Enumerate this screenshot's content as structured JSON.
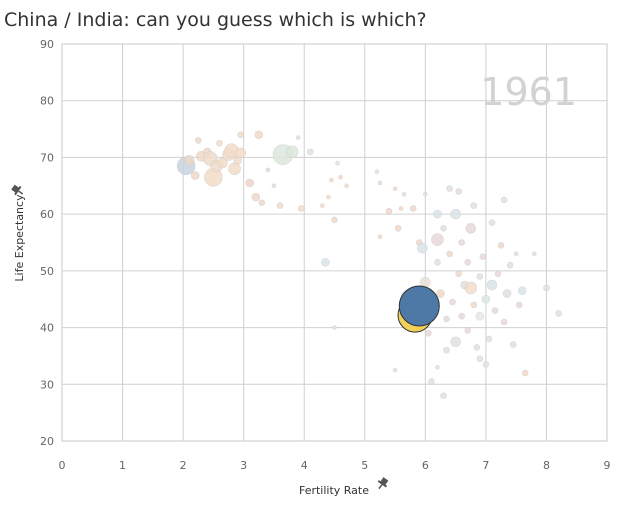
{
  "title": "China / India: can you guess which is which?",
  "chart_data": {
    "type": "scatter",
    "title": "China / India: can you guess which is which?",
    "xlabel": "Fertility Rate",
    "ylabel": "Life Expectancy",
    "xlim": [
      0,
      9
    ],
    "ylim": [
      20,
      90
    ],
    "xticks": [
      "0",
      "1",
      "2",
      "3",
      "4",
      "5",
      "6",
      "7",
      "8",
      "9"
    ],
    "yticks": [
      "20",
      "30",
      "40",
      "50",
      "60",
      "70",
      "80",
      "90"
    ],
    "grid": true,
    "year_label": "1961",
    "highlighted": [
      {
        "x": 5.83,
        "y": 42.2,
        "size": 17,
        "color": "#f0d25a"
      },
      {
        "x": 5.9,
        "y": 43.8,
        "size": 20,
        "color": "#4e79a7"
      }
    ],
    "background_points": [
      {
        "x": 2.05,
        "y": 68.5,
        "size": 9,
        "color": "#c8d4e0"
      },
      {
        "x": 2.1,
        "y": 69.5,
        "size": 5,
        "color": "#ead8c8"
      },
      {
        "x": 2.2,
        "y": 66.8,
        "size": 4,
        "color": "#f0d8c8"
      },
      {
        "x": 2.25,
        "y": 73.0,
        "size": 3,
        "color": "#f0d8c8"
      },
      {
        "x": 2.3,
        "y": 70.2,
        "size": 5,
        "color": "#f0d8c8"
      },
      {
        "x": 2.4,
        "y": 71.0,
        "size": 4,
        "color": "#f0d8c8"
      },
      {
        "x": 2.45,
        "y": 69.8,
        "size": 7,
        "color": "#f0dcc8"
      },
      {
        "x": 2.5,
        "y": 66.5,
        "size": 9,
        "color": "#f3dcc8"
      },
      {
        "x": 2.55,
        "y": 68.5,
        "size": 6,
        "color": "#f0dcc8"
      },
      {
        "x": 2.6,
        "y": 72.5,
        "size": 3,
        "color": "#f0dcc8"
      },
      {
        "x": 2.65,
        "y": 69.0,
        "size": 5,
        "color": "#f0dcc8"
      },
      {
        "x": 2.75,
        "y": 70.5,
        "size": 6,
        "color": "#f0dcc8"
      },
      {
        "x": 2.8,
        "y": 71.2,
        "size": 7,
        "color": "#f3dcc8"
      },
      {
        "x": 2.85,
        "y": 68.0,
        "size": 6,
        "color": "#f3dcc8"
      },
      {
        "x": 2.9,
        "y": 69.5,
        "size": 4,
        "color": "#f0dcc8"
      },
      {
        "x": 2.95,
        "y": 70.8,
        "size": 5,
        "color": "#f3dcc8"
      },
      {
        "x": 2.95,
        "y": 74.0,
        "size": 3,
        "color": "#f0dcc8"
      },
      {
        "x": 3.1,
        "y": 65.5,
        "size": 4,
        "color": "#f0d4c8"
      },
      {
        "x": 3.2,
        "y": 63.0,
        "size": 4,
        "color": "#f0d8c8"
      },
      {
        "x": 3.25,
        "y": 74.0,
        "size": 4,
        "color": "#f0d8c8"
      },
      {
        "x": 3.3,
        "y": 62.0,
        "size": 3,
        "color": "#f0d8c8"
      },
      {
        "x": 3.4,
        "y": 67.8,
        "size": 2,
        "color": "#e8d8d8"
      },
      {
        "x": 3.5,
        "y": 65.0,
        "size": 2,
        "color": "#e8d8d8"
      },
      {
        "x": 3.6,
        "y": 61.5,
        "size": 3,
        "color": "#f0dcc8"
      },
      {
        "x": 3.65,
        "y": 70.5,
        "size": 10,
        "color": "#dce8dc"
      },
      {
        "x": 3.8,
        "y": 71.0,
        "size": 6,
        "color": "#dce8dc"
      },
      {
        "x": 3.9,
        "y": 73.5,
        "size": 2,
        "color": "#e0e0e0"
      },
      {
        "x": 3.95,
        "y": 61.0,
        "size": 3,
        "color": "#f0dcc8"
      },
      {
        "x": 4.1,
        "y": 71.0,
        "size": 3,
        "color": "#e8e0d8"
      },
      {
        "x": 4.3,
        "y": 61.5,
        "size": 2,
        "color": "#f0d8c8"
      },
      {
        "x": 4.35,
        "y": 51.5,
        "size": 4,
        "color": "#d8e4e8"
      },
      {
        "x": 4.4,
        "y": 63.0,
        "size": 2,
        "color": "#f0d8c8"
      },
      {
        "x": 4.45,
        "y": 66.0,
        "size": 2,
        "color": "#f0d8c8"
      },
      {
        "x": 4.5,
        "y": 59.0,
        "size": 3,
        "color": "#f0d8c8"
      },
      {
        "x": 4.55,
        "y": 69.0,
        "size": 2,
        "color": "#e8e0d8"
      },
      {
        "x": 4.6,
        "y": 66.5,
        "size": 2,
        "color": "#f0d8c8"
      },
      {
        "x": 4.7,
        "y": 65.0,
        "size": 2,
        "color": "#f0d8c8"
      },
      {
        "x": 4.5,
        "y": 40.0,
        "size": 2,
        "color": "#e0e0e0"
      },
      {
        "x": 5.2,
        "y": 67.5,
        "size": 2,
        "color": "#e0e0e0"
      },
      {
        "x": 5.25,
        "y": 65.5,
        "size": 2,
        "color": "#e8d8d8"
      },
      {
        "x": 5.25,
        "y": 56.0,
        "size": 2,
        "color": "#f0d8c8"
      },
      {
        "x": 5.4,
        "y": 60.5,
        "size": 3,
        "color": "#f0d8c8"
      },
      {
        "x": 5.5,
        "y": 64.5,
        "size": 2,
        "color": "#f0d8c8"
      },
      {
        "x": 5.55,
        "y": 57.5,
        "size": 3,
        "color": "#f0d8c8"
      },
      {
        "x": 5.6,
        "y": 61.0,
        "size": 2,
        "color": "#f0d8c8"
      },
      {
        "x": 5.65,
        "y": 63.5,
        "size": 2,
        "color": "#e0e0e0"
      },
      {
        "x": 5.7,
        "y": 45.5,
        "size": 6,
        "color": "#e8e8e8"
      },
      {
        "x": 5.75,
        "y": 43.0,
        "size": 4,
        "color": "#e8e8e8"
      },
      {
        "x": 5.8,
        "y": 61.0,
        "size": 3,
        "color": "#f0d8c8"
      },
      {
        "x": 5.9,
        "y": 55.0,
        "size": 3,
        "color": "#f0d8c8"
      },
      {
        "x": 5.95,
        "y": 54.0,
        "size": 5,
        "color": "#d8e4e8"
      },
      {
        "x": 6.0,
        "y": 48.0,
        "size": 5,
        "color": "#e8e0d8"
      },
      {
        "x": 6.05,
        "y": 39.0,
        "size": 3,
        "color": "#e8d8d8"
      },
      {
        "x": 6.1,
        "y": 30.5,
        "size": 3,
        "color": "#e0e0e0"
      },
      {
        "x": 6.15,
        "y": 44.0,
        "size": 4,
        "color": "#e0e0e0"
      },
      {
        "x": 6.2,
        "y": 60.0,
        "size": 4,
        "color": "#d8e4e8"
      },
      {
        "x": 6.2,
        "y": 51.5,
        "size": 3,
        "color": "#e0e0e0"
      },
      {
        "x": 6.2,
        "y": 55.5,
        "size": 6,
        "color": "#e8d8d8"
      },
      {
        "x": 6.25,
        "y": 46.0,
        "size": 4,
        "color": "#f0d8c8"
      },
      {
        "x": 6.3,
        "y": 57.5,
        "size": 3,
        "color": "#e0e0e0"
      },
      {
        "x": 6.35,
        "y": 41.5,
        "size": 3,
        "color": "#e8d8d8"
      },
      {
        "x": 6.35,
        "y": 36.0,
        "size": 3,
        "color": "#e0e0e0"
      },
      {
        "x": 6.4,
        "y": 53.0,
        "size": 3,
        "color": "#f0d8c8"
      },
      {
        "x": 6.45,
        "y": 44.5,
        "size": 3,
        "color": "#e8d8d8"
      },
      {
        "x": 6.5,
        "y": 60.0,
        "size": 5,
        "color": "#d8e4e8"
      },
      {
        "x": 6.5,
        "y": 37.5,
        "size": 5,
        "color": "#e0e0e0"
      },
      {
        "x": 6.55,
        "y": 49.5,
        "size": 3,
        "color": "#f0d8c8"
      },
      {
        "x": 6.55,
        "y": 64.0,
        "size": 3,
        "color": "#e8d8d8"
      },
      {
        "x": 6.6,
        "y": 55.0,
        "size": 3,
        "color": "#e8d8d8"
      },
      {
        "x": 6.6,
        "y": 42.0,
        "size": 3,
        "color": "#e8d8d8"
      },
      {
        "x": 6.65,
        "y": 47.5,
        "size": 4,
        "color": "#e0e0e0"
      },
      {
        "x": 6.7,
        "y": 39.5,
        "size": 3,
        "color": "#e8d8d8"
      },
      {
        "x": 6.7,
        "y": 51.5,
        "size": 3,
        "color": "#e8d8d8"
      },
      {
        "x": 6.75,
        "y": 57.5,
        "size": 5,
        "color": "#e8d8d8"
      },
      {
        "x": 6.75,
        "y": 47.0,
        "size": 6,
        "color": "#f3dcc8"
      },
      {
        "x": 6.8,
        "y": 44.0,
        "size": 3,
        "color": "#f0d8c8"
      },
      {
        "x": 6.8,
        "y": 61.5,
        "size": 3,
        "color": "#e0e0e0"
      },
      {
        "x": 6.85,
        "y": 36.5,
        "size": 3,
        "color": "#e0e0e0"
      },
      {
        "x": 6.9,
        "y": 42.0,
        "size": 4,
        "color": "#e8e8e8"
      },
      {
        "x": 6.9,
        "y": 49.0,
        "size": 3,
        "color": "#e0e0e0"
      },
      {
        "x": 6.95,
        "y": 52.5,
        "size": 3,
        "color": "#e8d8d8"
      },
      {
        "x": 7.0,
        "y": 45.0,
        "size": 4,
        "color": "#dce8e0"
      },
      {
        "x": 7.0,
        "y": 33.5,
        "size": 3,
        "color": "#e0e0e0"
      },
      {
        "x": 7.05,
        "y": 38.0,
        "size": 3,
        "color": "#e0e0e0"
      },
      {
        "x": 7.1,
        "y": 47.5,
        "size": 5,
        "color": "#d8e4e8"
      },
      {
        "x": 7.1,
        "y": 58.5,
        "size": 3,
        "color": "#e0e0e0"
      },
      {
        "x": 7.15,
        "y": 43.0,
        "size": 3,
        "color": "#e8d8d8"
      },
      {
        "x": 7.2,
        "y": 49.5,
        "size": 3,
        "color": "#e8d8d8"
      },
      {
        "x": 7.25,
        "y": 54.5,
        "size": 3,
        "color": "#f0d8c8"
      },
      {
        "x": 7.3,
        "y": 62.5,
        "size": 3,
        "color": "#e0e0e0"
      },
      {
        "x": 7.3,
        "y": 41.0,
        "size": 3,
        "color": "#e8d8d8"
      },
      {
        "x": 7.35,
        "y": 46.0,
        "size": 4,
        "color": "#e0e0e0"
      },
      {
        "x": 7.4,
        "y": 51.0,
        "size": 3,
        "color": "#e0e0e0"
      },
      {
        "x": 7.45,
        "y": 37.0,
        "size": 3,
        "color": "#e0e0e0"
      },
      {
        "x": 7.5,
        "y": 53.0,
        "size": 2,
        "color": "#e0e0e0"
      },
      {
        "x": 7.55,
        "y": 44.0,
        "size": 3,
        "color": "#e8d8d8"
      },
      {
        "x": 7.6,
        "y": 46.5,
        "size": 4,
        "color": "#d8e4e8"
      },
      {
        "x": 7.65,
        "y": 32.0,
        "size": 3,
        "color": "#f0d8c8"
      },
      {
        "x": 7.8,
        "y": 53.0,
        "size": 2,
        "color": "#e0e0e0"
      },
      {
        "x": 8.0,
        "y": 47.0,
        "size": 3,
        "color": "#e0e0e0"
      },
      {
        "x": 8.2,
        "y": 42.5,
        "size": 3,
        "color": "#e0e0e0"
      },
      {
        "x": 6.3,
        "y": 28.0,
        "size": 3,
        "color": "#e0e0e0"
      },
      {
        "x": 6.9,
        "y": 34.5,
        "size": 3,
        "color": "#e0e0e0"
      },
      {
        "x": 6.2,
        "y": 33.0,
        "size": 2,
        "color": "#e0e0e0"
      },
      {
        "x": 5.5,
        "y": 32.5,
        "size": 2,
        "color": "#e0e0e0"
      },
      {
        "x": 6.4,
        "y": 64.5,
        "size": 3,
        "color": "#e0e0e0"
      },
      {
        "x": 6.0,
        "y": 63.5,
        "size": 2,
        "color": "#e0e0e0"
      }
    ]
  }
}
